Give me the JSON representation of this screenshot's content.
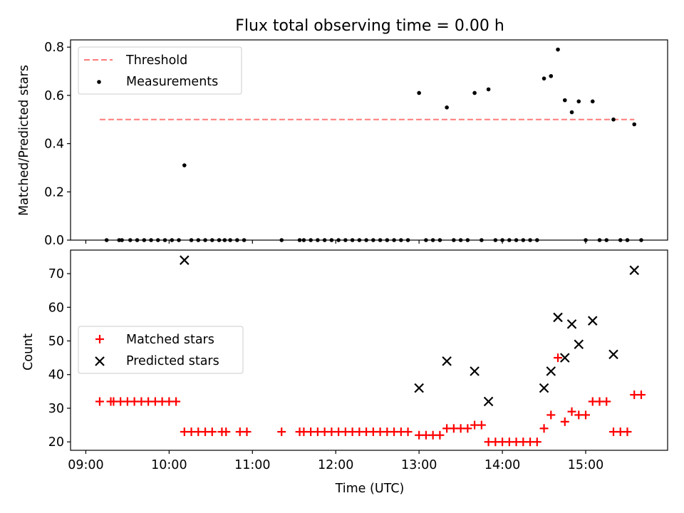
{
  "figure": {
    "title": "Flux total observing time = 0.00 h",
    "xlabel": "Time (UTC)",
    "colors": {
      "threshold": "#ff7b7b",
      "measurement": "#000000",
      "matched": "#ff0000",
      "predicted": "#000000"
    }
  },
  "chart_data": [
    {
      "type": "scatter",
      "ylabel": "Matched/Predicted stars",
      "xlim": [
        "08:49",
        "15:59"
      ],
      "ylim": [
        0,
        0.83
      ],
      "yticks": [
        0.0,
        0.2,
        0.4,
        0.6,
        0.8
      ],
      "ytick_labels": [
        "0.0",
        "0.2",
        "0.4",
        "0.6",
        "0.8"
      ],
      "legend": {
        "placement": "upper left",
        "entries": [
          {
            "label": "Threshold",
            "marker": "dashed-line"
          },
          {
            "label": "Measurements",
            "marker": "dot"
          }
        ]
      },
      "threshold": {
        "name": "Threshold",
        "y": 0.5,
        "x_range": [
          "09:10",
          "15:35"
        ]
      },
      "series": [
        {
          "name": "Measurements",
          "points": [
            [
              "09:15",
              0
            ],
            [
              "09:24",
              0
            ],
            [
              "09:26",
              0
            ],
            [
              "09:32",
              0
            ],
            [
              "09:37",
              0
            ],
            [
              "09:42",
              0
            ],
            [
              "09:47",
              0
            ],
            [
              "09:52",
              0
            ],
            [
              "09:57",
              0
            ],
            [
              "10:02",
              0
            ],
            [
              "10:07",
              0
            ],
            [
              "10:11",
              0.31
            ],
            [
              "10:16",
              0
            ],
            [
              "10:21",
              0
            ],
            [
              "10:26",
              0
            ],
            [
              "10:31",
              0
            ],
            [
              "10:36",
              0
            ],
            [
              "10:40",
              0
            ],
            [
              "10:44",
              0
            ],
            [
              "10:49",
              0
            ],
            [
              "10:54",
              0
            ],
            [
              "11:21",
              0
            ],
            [
              "11:34",
              0
            ],
            [
              "11:37",
              0
            ],
            [
              "11:42",
              0
            ],
            [
              "11:47",
              0
            ],
            [
              "11:52",
              0
            ],
            [
              "11:57",
              0
            ],
            [
              "12:02",
              0
            ],
            [
              "12:07",
              0
            ],
            [
              "12:12",
              0
            ],
            [
              "12:17",
              0
            ],
            [
              "12:22",
              0
            ],
            [
              "12:27",
              0
            ],
            [
              "12:32",
              0
            ],
            [
              "12:37",
              0
            ],
            [
              "12:42",
              0
            ],
            [
              "12:47",
              0
            ],
            [
              "12:52",
              0
            ],
            [
              "13:00",
              0.61
            ],
            [
              "13:05",
              0
            ],
            [
              "13:10",
              0
            ],
            [
              "13:15",
              0
            ],
            [
              "13:20",
              0.55
            ],
            [
              "13:25",
              0
            ],
            [
              "13:30",
              0
            ],
            [
              "13:35",
              0
            ],
            [
              "13:40",
              0.61
            ],
            [
              "13:45",
              0
            ],
            [
              "13:50",
              0.625
            ],
            [
              "13:55",
              0
            ],
            [
              "14:00",
              0
            ],
            [
              "14:05",
              0
            ],
            [
              "14:10",
              0
            ],
            [
              "14:15",
              0
            ],
            [
              "14:20",
              0
            ],
            [
              "14:25",
              0
            ],
            [
              "14:30",
              0.67
            ],
            [
              "14:35",
              0.68
            ],
            [
              "14:40",
              0.79
            ],
            [
              "14:45",
              0.58
            ],
            [
              "14:50",
              0.53
            ],
            [
              "14:55",
              0.575
            ],
            [
              "15:00",
              0
            ],
            [
              "15:05",
              0.575
            ],
            [
              "15:10",
              0
            ],
            [
              "15:15",
              0
            ],
            [
              "15:20",
              0.5
            ],
            [
              "15:25",
              0
            ],
            [
              "15:30",
              0
            ],
            [
              "15:35",
              0.48
            ],
            [
              "15:40",
              0
            ]
          ]
        }
      ]
    },
    {
      "type": "scatter",
      "ylabel": "Count",
      "xlabel": "Time (UTC)",
      "xlim": [
        "08:49",
        "15:59"
      ],
      "ylim": [
        17.5,
        77
      ],
      "yticks": [
        20,
        30,
        40,
        50,
        60,
        70
      ],
      "ytick_labels": [
        "20",
        "30",
        "40",
        "50",
        "60",
        "70"
      ],
      "xticks": [
        "09:00",
        "10:00",
        "11:00",
        "12:00",
        "13:00",
        "14:00",
        "15:00"
      ],
      "xtick_labels": [
        "09:00",
        "10:00",
        "11:00",
        "12:00",
        "13:00",
        "14:00",
        "15:00"
      ],
      "legend": {
        "placement": "center left",
        "entries": [
          {
            "label": "Matched stars",
            "marker": "plus"
          },
          {
            "label": "Predicted stars",
            "marker": "x"
          }
        ]
      },
      "series": [
        {
          "name": "Matched stars",
          "points": [
            [
              "09:10",
              32
            ],
            [
              "09:18",
              32
            ],
            [
              "09:20",
              32
            ],
            [
              "09:25",
              32
            ],
            [
              "09:30",
              32
            ],
            [
              "09:35",
              32
            ],
            [
              "09:40",
              32
            ],
            [
              "09:45",
              32
            ],
            [
              "09:50",
              32
            ],
            [
              "09:55",
              32
            ],
            [
              "10:00",
              32
            ],
            [
              "10:05",
              32
            ],
            [
              "10:11",
              23
            ],
            [
              "10:16",
              23
            ],
            [
              "10:21",
              23
            ],
            [
              "10:26",
              23
            ],
            [
              "10:31",
              23
            ],
            [
              "10:38",
              23
            ],
            [
              "10:41",
              23
            ],
            [
              "10:51",
              23
            ],
            [
              "10:56",
              23
            ],
            [
              "11:21",
              23
            ],
            [
              "11:34",
              23
            ],
            [
              "11:37",
              23
            ],
            [
              "11:42",
              23
            ],
            [
              "11:47",
              23
            ],
            [
              "11:52",
              23
            ],
            [
              "11:57",
              23
            ],
            [
              "12:02",
              23
            ],
            [
              "12:07",
              23
            ],
            [
              "12:12",
              23
            ],
            [
              "12:17",
              23
            ],
            [
              "12:22",
              23
            ],
            [
              "12:27",
              23
            ],
            [
              "12:32",
              23
            ],
            [
              "12:37",
              23
            ],
            [
              "12:42",
              23
            ],
            [
              "12:47",
              23
            ],
            [
              "12:52",
              23
            ],
            [
              "13:00",
              22
            ],
            [
              "13:05",
              22
            ],
            [
              "13:10",
              22
            ],
            [
              "13:15",
              22
            ],
            [
              "13:20",
              24
            ],
            [
              "13:25",
              24
            ],
            [
              "13:30",
              24
            ],
            [
              "13:35",
              24
            ],
            [
              "13:40",
              25
            ],
            [
              "13:45",
              25
            ],
            [
              "13:50",
              20
            ],
            [
              "13:55",
              20
            ],
            [
              "14:00",
              20
            ],
            [
              "14:05",
              20
            ],
            [
              "14:10",
              20
            ],
            [
              "14:15",
              20
            ],
            [
              "14:20",
              20
            ],
            [
              "14:25",
              20
            ],
            [
              "14:30",
              24
            ],
            [
              "14:35",
              28
            ],
            [
              "14:40",
              45
            ],
            [
              "14:45",
              26
            ],
            [
              "14:50",
              29
            ],
            [
              "14:55",
              28
            ],
            [
              "15:00",
              28
            ],
            [
              "15:05",
              32
            ],
            [
              "15:10",
              32
            ],
            [
              "15:15",
              32
            ],
            [
              "15:20",
              23
            ],
            [
              "15:25",
              23
            ],
            [
              "15:30",
              23
            ],
            [
              "15:35",
              34
            ],
            [
              "15:40",
              34
            ]
          ]
        },
        {
          "name": "Predicted stars",
          "points": [
            [
              "10:11",
              74
            ],
            [
              "13:00",
              36
            ],
            [
              "13:20",
              44
            ],
            [
              "13:40",
              41
            ],
            [
              "13:50",
              32
            ],
            [
              "14:30",
              36
            ],
            [
              "14:35",
              41
            ],
            [
              "14:40",
              57
            ],
            [
              "14:45",
              45
            ],
            [
              "14:50",
              55
            ],
            [
              "14:55",
              49
            ],
            [
              "15:05",
              56
            ],
            [
              "15:20",
              46
            ],
            [
              "15:35",
              71
            ]
          ]
        }
      ]
    }
  ]
}
